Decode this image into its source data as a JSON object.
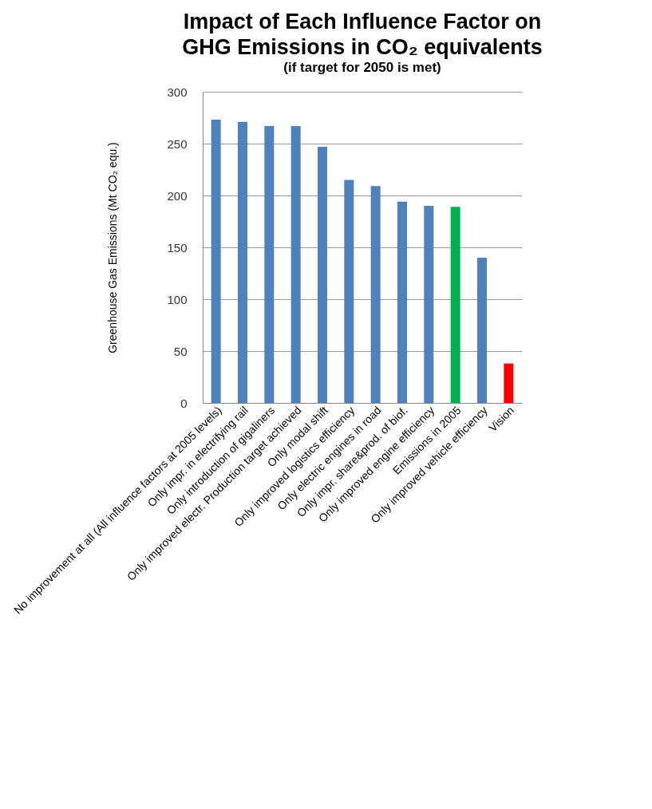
{
  "chart_data": {
    "type": "bar",
    "title": "Impact of Each Influence Factor on GHG Emissions in CO₂ equivalents",
    "subtitle": "(if target for 2050 is met)",
    "ylabel": "Greenhouse Gas Emissions  (Mt CO₂ equ.)",
    "categories": [
      "No improvement at all (All influence factors at 2005 levels)",
      "Only impr. in electrifying rail",
      "Only introduction of gigaliners",
      "Only improved electr. Production target achieved",
      "Only modal shift",
      "Only improved logistics efficiency",
      "Only electric engines in road",
      "Only impr. share&prod. of biof.",
      "Only improved engine efficiency",
      "Emissions in 2005",
      "Only improved vehicle efficiency",
      "Vision"
    ],
    "values": [
      273,
      271,
      267,
      267,
      247,
      215,
      209,
      194,
      190,
      189,
      140,
      38
    ],
    "colors": [
      "#4f81bd",
      "#4f81bd",
      "#4f81bd",
      "#4f81bd",
      "#4f81bd",
      "#4f81bd",
      "#4f81bd",
      "#4f81bd",
      "#4f81bd",
      "#00b050",
      "#4f81bd",
      "#ff0000"
    ],
    "ylim": [
      0,
      300
    ],
    "yticks": [
      0,
      50,
      100,
      150,
      200,
      250,
      300
    ],
    "grid": "y",
    "legend": false
  }
}
